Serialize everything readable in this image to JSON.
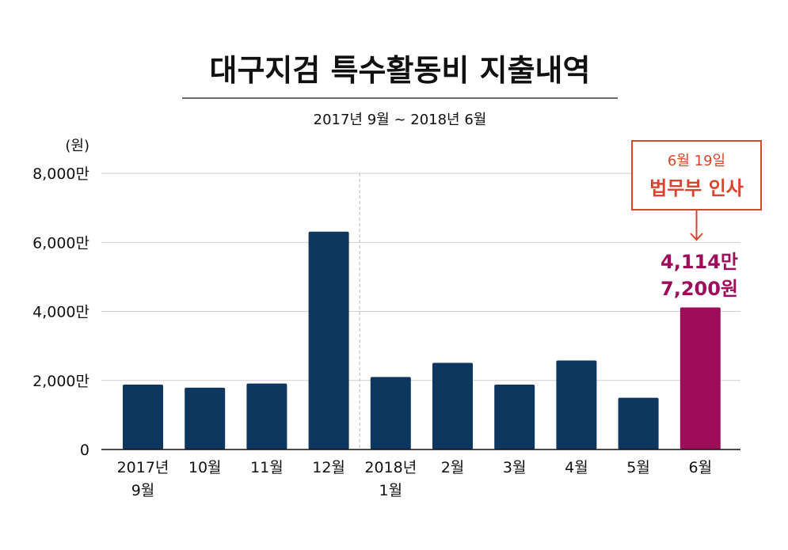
{
  "chart_data": {
    "type": "bar",
    "title": "대구지검 특수활동비 지출내역",
    "subtitle": "2017년 9월 ~ 2018년 6월",
    "ylabel": "(원)",
    "ylim": [
      0,
      80000000
    ],
    "yticks": [
      {
        "value": 0,
        "label": "0"
      },
      {
        "value": 20000000,
        "label": "2,000만"
      },
      {
        "value": 40000000,
        "label": "4,000만"
      },
      {
        "value": 60000000,
        "label": "6,000만"
      },
      {
        "value": 80000000,
        "label": "8,000만"
      }
    ],
    "categories": [
      {
        "line1": "2017년",
        "line2": "9월"
      },
      {
        "line1": "10월",
        "line2": ""
      },
      {
        "line1": "11월",
        "line2": ""
      },
      {
        "line1": "12월",
        "line2": ""
      },
      {
        "line1": "2018년",
        "line2": "1월"
      },
      {
        "line1": "2월",
        "line2": ""
      },
      {
        "line1": "3월",
        "line2": ""
      },
      {
        "line1": "4월",
        "line2": ""
      },
      {
        "line1": "5월",
        "line2": ""
      },
      {
        "line1": "6월",
        "line2": ""
      }
    ],
    "values": [
      18800000,
      17900000,
      19100000,
      63100000,
      21000000,
      25100000,
      18800000,
      25800000,
      15000000,
      41147200
    ],
    "highlight_index": 9,
    "highlight_label": {
      "line1": "4,114만",
      "line2": "7,200원"
    },
    "annotation": {
      "date": "6월 19일",
      "event": "법무부 인사"
    },
    "year_divider_after_index": 3,
    "grid": true
  },
  "colors": {
    "bar": "#0e375f",
    "highlight": "#9d0d5a",
    "annotation": "#d9442d",
    "grid": "#cfcfcf",
    "text": "#111111"
  }
}
